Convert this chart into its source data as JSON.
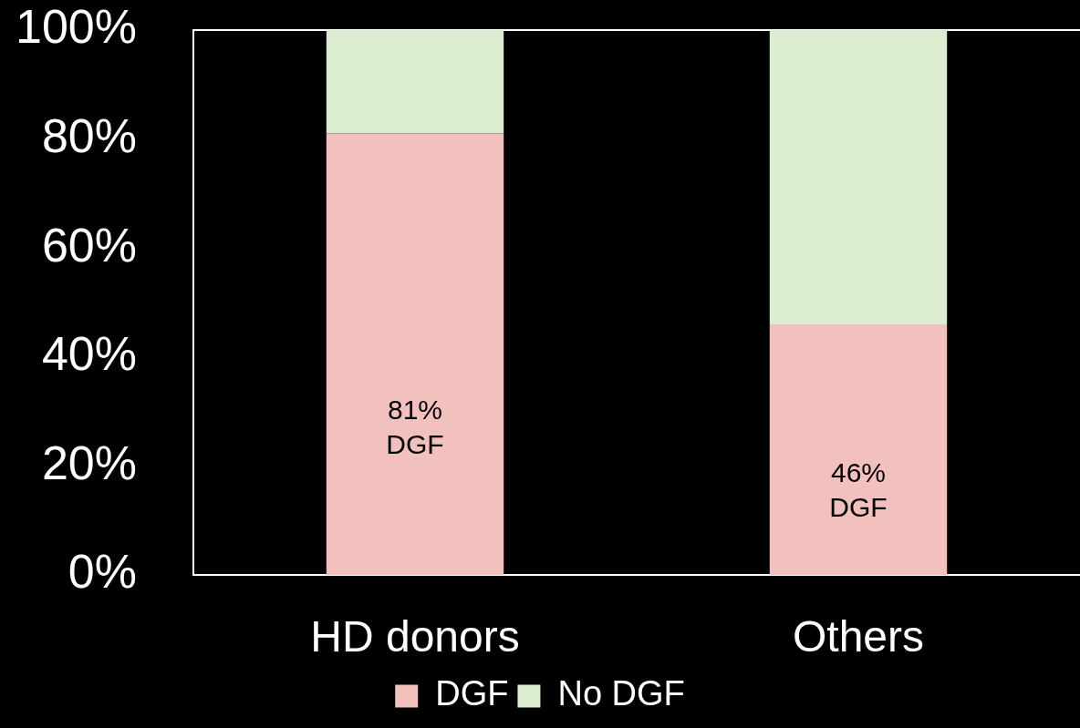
{
  "chart_data": {
    "type": "bar",
    "stacked": true,
    "categories": [
      "HD donors",
      "Others"
    ],
    "series": [
      {
        "name": "DGF",
        "color": "#f2c1be",
        "values": [
          81,
          46
        ],
        "value_labels": [
          "81% DGF",
          "46% DGF"
        ]
      },
      {
        "name": "No DGF",
        "color": "#dcecd0",
        "values": [
          19,
          54
        ]
      }
    ],
    "ylim": [
      0,
      100
    ],
    "yticks": [
      {
        "value": 0,
        "label": "0%"
      },
      {
        "value": 20,
        "label": "20%"
      },
      {
        "value": 40,
        "label": "40%"
      },
      {
        "value": 60,
        "label": "60%"
      },
      {
        "value": 80,
        "label": "80%"
      },
      {
        "value": 100,
        "label": "100%"
      }
    ],
    "grid": false,
    "legend": "bottom"
  }
}
